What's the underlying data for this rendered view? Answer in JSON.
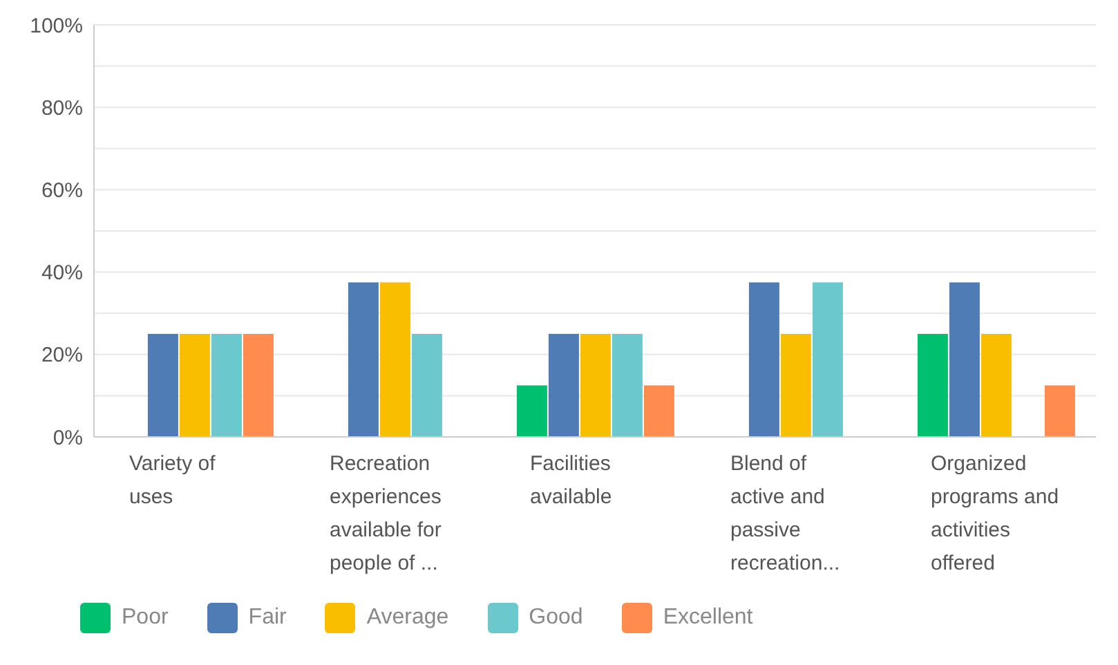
{
  "chart_data": {
    "type": "bar",
    "categories": [
      "Variety of uses",
      "Recreation experiences available for people of ...",
      "Facilities available",
      "Blend of active and passive recreation...",
      "Organized programs and activities offered"
    ],
    "series": [
      {
        "name": "Poor",
        "color": "#00bf6f",
        "values": [
          0,
          0,
          12.5,
          0,
          25
        ]
      },
      {
        "name": "Fair",
        "color": "#507cb6",
        "values": [
          25,
          37.5,
          25,
          37.5,
          37.5
        ]
      },
      {
        "name": "Average",
        "color": "#f9be00",
        "values": [
          25,
          37.5,
          25,
          25,
          25
        ]
      },
      {
        "name": "Good",
        "color": "#6bc8cd",
        "values": [
          25,
          25,
          25,
          37.5,
          0
        ]
      },
      {
        "name": "Excellent",
        "color": "#ff8b4f",
        "values": [
          25,
          0,
          12.5,
          0,
          12.5
        ]
      }
    ],
    "ylim": [
      0,
      100
    ],
    "yticks": [
      {
        "value": 0,
        "label": "0%"
      },
      {
        "value": 10,
        "label": null
      },
      {
        "value": 20,
        "label": "20%"
      },
      {
        "value": 30,
        "label": null
      },
      {
        "value": 40,
        "label": "40%"
      },
      {
        "value": 50,
        "label": null
      },
      {
        "value": 60,
        "label": "60%"
      },
      {
        "value": 70,
        "label": null
      },
      {
        "value": 80,
        "label": "80%"
      },
      {
        "value": 90,
        "label": null
      },
      {
        "value": 100,
        "label": "100%"
      }
    ],
    "grid": "y",
    "legend": "bottom left"
  }
}
